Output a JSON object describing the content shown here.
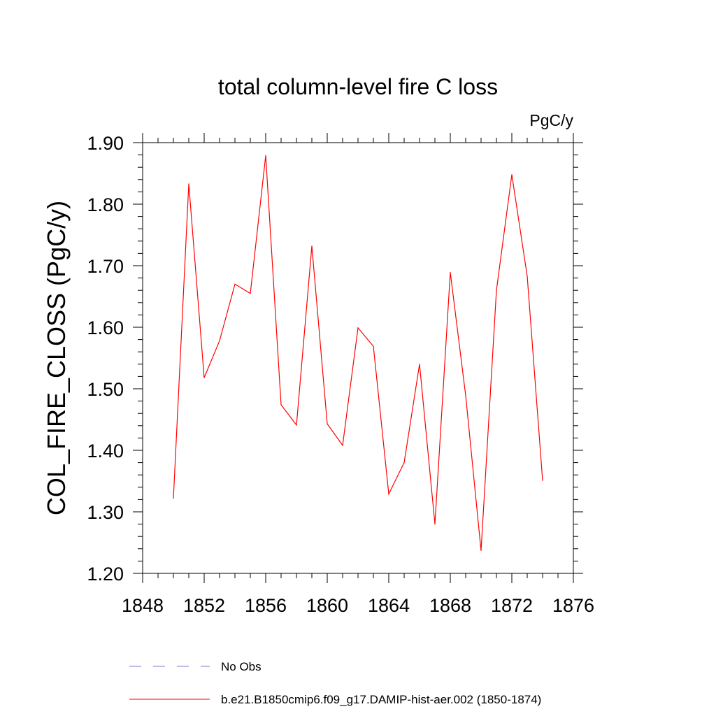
{
  "chart_data": {
    "type": "line",
    "title": "total column-level fire C loss",
    "units_label": "PgC/y",
    "xlabel": "",
    "ylabel": "COL_FIRE_CLOSS  (PgC/y)",
    "xlim": [
      1848,
      1876
    ],
    "ylim": [
      1.2,
      1.9
    ],
    "x_ticks": [
      "1848",
      "1852",
      "1856",
      "1860",
      "1864",
      "1868",
      "1872",
      "1876"
    ],
    "y_ticks": [
      "1.20",
      "1.30",
      "1.40",
      "1.50",
      "1.60",
      "1.70",
      "1.80",
      "1.90"
    ],
    "grid": false,
    "legend_position": "bottom",
    "series": [
      {
        "name": "No Obs",
        "color": "#7a7acc",
        "dash": "dashed",
        "x": [],
        "values": []
      },
      {
        "name": "b.e21.B1850cmip6.f09_g17.DAMIP-hist-aer.002 (1850-1874)",
        "color": "#ff0000",
        "dash": "solid",
        "x": [
          1850,
          1851,
          1852,
          1853,
          1854,
          1855,
          1856,
          1857,
          1858,
          1859,
          1860,
          1861,
          1862,
          1863,
          1864,
          1865,
          1866,
          1867,
          1868,
          1869,
          1870,
          1871,
          1872,
          1873,
          1874
        ],
        "values": [
          1.322,
          1.833,
          1.518,
          1.578,
          1.67,
          1.655,
          1.879,
          1.474,
          1.441,
          1.732,
          1.443,
          1.408,
          1.599,
          1.569,
          1.329,
          1.38,
          1.54,
          1.28,
          1.689,
          1.489,
          1.237,
          1.66,
          1.848,
          1.683,
          1.351
        ]
      }
    ]
  }
}
